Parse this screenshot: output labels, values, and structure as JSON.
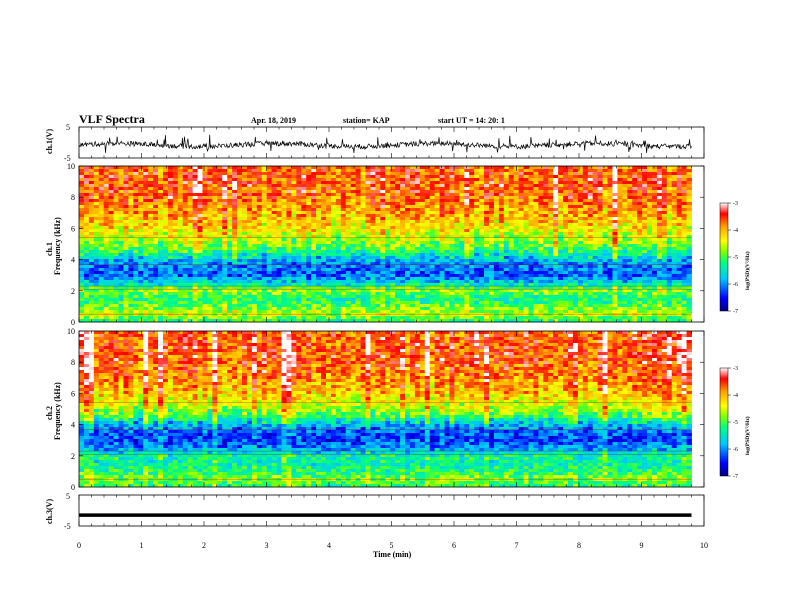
{
  "header": {
    "title": "VLF Spectra",
    "date": "Apr. 18, 2019",
    "station": "station= KAP",
    "start": "start  UT =   14: 20: 1"
  },
  "chart_data": [
    {
      "type": "line",
      "panel": "ch1_waveform",
      "ylabel": "ch.1(V)",
      "ylim": [
        -5,
        5
      ],
      "yticks": [
        "5",
        "-5"
      ],
      "xlim": [
        0,
        10
      ],
      "series": [
        {
          "description_only": true,
          "x_range": [
            0,
            9.8
          ],
          "values_mean": -0.8,
          "values_spread": [
            -3.5,
            2.5
          ]
        }
      ]
    },
    {
      "type": "heatmap",
      "panel": "ch1_spectrogram",
      "ylabel": "ch.1",
      "ylabel2": "Frequency (kHz)",
      "ylim": [
        0,
        10
      ],
      "yticks": [
        "0",
        "2",
        "4",
        "6",
        "8",
        "10"
      ],
      "xlim": [
        0,
        10
      ],
      "x_range": [
        0,
        9.8
      ],
      "power_by_frequency_kHz": [
        [
          0.0,
          -5.2
        ],
        [
          0.5,
          -4.6
        ],
        [
          1.0,
          -4.9
        ],
        [
          1.5,
          -5.3
        ],
        [
          2.0,
          -4.7
        ],
        [
          2.5,
          -5.6
        ],
        [
          3.0,
          -6.2
        ],
        [
          3.5,
          -6.1
        ],
        [
          4.0,
          -5.8
        ],
        [
          4.5,
          -5.2
        ],
        [
          5.0,
          -4.8
        ],
        [
          6.0,
          -4.3
        ],
        [
          7.0,
          -4.0
        ],
        [
          8.0,
          -3.7
        ],
        [
          9.0,
          -3.6
        ],
        [
          10.0,
          -3.7
        ]
      ],
      "colorbar": {
        "label": "log(PSD)(V²/Hz)",
        "range": [
          -7,
          -3
        ],
        "ticks": [
          "-3",
          "-4",
          "-5",
          "-6",
          "-7"
        ]
      }
    },
    {
      "type": "heatmap",
      "panel": "ch2_spectrogram",
      "ylabel": "ch.2",
      "ylabel2": "Frequency (kHz)",
      "ylim": [
        0,
        10
      ],
      "yticks": [
        "0",
        "2",
        "4",
        "6",
        "8",
        "10"
      ],
      "xlim": [
        0,
        10
      ],
      "x_range": [
        0,
        9.8
      ],
      "power_by_frequency_kHz": [
        [
          0.0,
          -5.2
        ],
        [
          0.5,
          -4.8
        ],
        [
          1.0,
          -5.2
        ],
        [
          1.5,
          -5.4
        ],
        [
          2.0,
          -5.3
        ],
        [
          2.5,
          -6.0
        ],
        [
          3.0,
          -6.3
        ],
        [
          3.5,
          -6.2
        ],
        [
          4.0,
          -5.8
        ],
        [
          4.5,
          -5.1
        ],
        [
          5.0,
          -4.6
        ],
        [
          6.0,
          -4.1
        ],
        [
          7.0,
          -3.8
        ],
        [
          8.0,
          -3.6
        ],
        [
          9.0,
          -3.6
        ],
        [
          10.0,
          -3.6
        ]
      ],
      "colorbar": {
        "label": "log(PSD)(V²/Hz)",
        "range": [
          -7,
          -3
        ],
        "ticks": [
          "-3",
          "-4",
          "-5",
          "-6",
          "-7"
        ]
      }
    },
    {
      "type": "line",
      "panel": "ch3_waveform",
      "ylabel": "ch.3(V)",
      "ylim": [
        -5,
        5
      ],
      "yticks": [
        "5",
        "-5"
      ],
      "xlim": [
        0,
        10
      ],
      "series": [
        {
          "description_only": true,
          "x_range": [
            0,
            9.8
          ],
          "constant_value": -1.5
        }
      ]
    }
  ],
  "xaxis": {
    "label": "Time (min)",
    "ticks": [
      "0",
      "1",
      "2",
      "3",
      "4",
      "5",
      "6",
      "7",
      "8",
      "9",
      "10"
    ]
  },
  "colors": {
    "colormap": [
      "#000080",
      "#0000ff",
      "#00c8ff",
      "#00ff80",
      "#80ff00",
      "#ffff00",
      "#ffa000",
      "#ff0000",
      "#ffffff"
    ],
    "line": "#000000"
  }
}
